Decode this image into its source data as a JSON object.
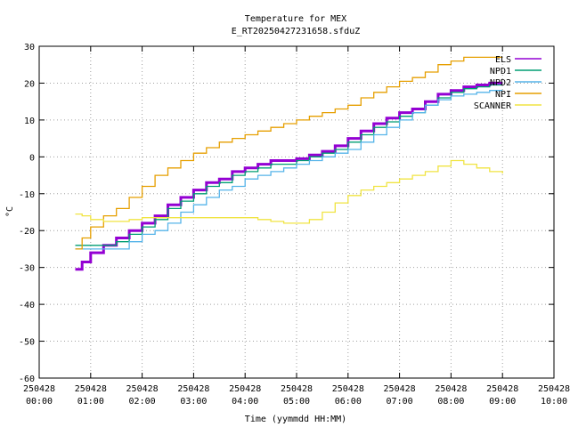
{
  "chart_data": {
    "type": "line",
    "title": "Temperature for MEX",
    "subtitle": "E_RT20250427231658.sfduZ",
    "xlabel": "Time (yymmdd HH:MM)",
    "ylabel": "°C",
    "xlim": [
      "250428 00:00",
      "250428 10:00"
    ],
    "ylim": [
      -60,
      30
    ],
    "grid": true,
    "legend_position": "top-right",
    "x_tick_labels": [
      {
        "date": "250428",
        "time": "00:00"
      },
      {
        "date": "250428",
        "time": "01:00"
      },
      {
        "date": "250428",
        "time": "02:00"
      },
      {
        "date": "250428",
        "time": "03:00"
      },
      {
        "date": "250428",
        "time": "04:00"
      },
      {
        "date": "250428",
        "time": "05:00"
      },
      {
        "date": "250428",
        "time": "06:00"
      },
      {
        "date": "250428",
        "time": "07:00"
      },
      {
        "date": "250428",
        "time": "08:00"
      },
      {
        "date": "250428",
        "time": "09:00"
      },
      {
        "date": "250428",
        "time": "10:00"
      }
    ],
    "y_ticks": [
      -60,
      -50,
      -40,
      -30,
      -20,
      -10,
      0,
      10,
      20,
      30
    ],
    "series": [
      {
        "name": "ELS",
        "color": "#9400d3",
        "x": [
          "250428 00:42",
          "250428 00:50",
          "250428 01:00",
          "250428 01:15",
          "250428 01:30",
          "250428 01:45",
          "250428 02:00",
          "250428 02:15",
          "250428 02:30",
          "250428 02:45",
          "250428 03:00",
          "250428 03:15",
          "250428 03:30",
          "250428 03:45",
          "250428 04:00",
          "250428 04:15",
          "250428 04:30",
          "250428 04:45",
          "250428 05:00",
          "250428 05:15",
          "250428 05:30",
          "250428 05:45",
          "250428 06:00",
          "250428 06:15",
          "250428 06:30",
          "250428 06:45",
          "250428 07:00",
          "250428 07:15",
          "250428 07:30",
          "250428 07:45",
          "250428 08:00",
          "250428 08:15",
          "250428 08:30",
          "250428 08:45",
          "250428 09:00"
        ],
        "y": [
          -30.5,
          -28.5,
          -26,
          -24,
          -22,
          -20,
          -18,
          -16,
          -13,
          -11,
          -9,
          -7,
          -6,
          -4,
          -3,
          -2,
          -1,
          -1,
          -0.5,
          0.5,
          1.5,
          3,
          5,
          7,
          9,
          10.5,
          12,
          13,
          15,
          17,
          18,
          19,
          19.5,
          20,
          20
        ]
      },
      {
        "name": "NPD1",
        "color": "#009e73",
        "x": [
          "250428 00:42",
          "250428 00:50",
          "250428 01:00",
          "250428 01:15",
          "250428 01:30",
          "250428 01:45",
          "250428 02:00",
          "250428 02:15",
          "250428 02:30",
          "250428 02:45",
          "250428 03:00",
          "250428 03:15",
          "250428 03:30",
          "250428 03:45",
          "250428 04:00",
          "250428 04:15",
          "250428 04:30",
          "250428 04:45",
          "250428 05:00",
          "250428 05:15",
          "250428 05:30",
          "250428 05:45",
          "250428 06:00",
          "250428 06:15",
          "250428 06:30",
          "250428 06:45",
          "250428 07:00",
          "250428 07:15",
          "250428 07:30",
          "250428 07:45",
          "250428 08:00",
          "250428 08:15",
          "250428 08:30",
          "250428 08:45",
          "250428 09:00"
        ],
        "y": [
          -24,
          -24,
          -24,
          -24,
          -23,
          -21,
          -19,
          -17,
          -14,
          -12,
          -10,
          -8,
          -7,
          -5,
          -4,
          -3,
          -2,
          -2,
          -1,
          0,
          1,
          2,
          4,
          6,
          8,
          9.5,
          11,
          12,
          14,
          16,
          17.5,
          18.5,
          19,
          19.5,
          19.5
        ]
      },
      {
        "name": "NPD2",
        "color": "#56b4e9",
        "x": [
          "250428 00:42",
          "250428 00:50",
          "250428 01:00",
          "250428 01:15",
          "250428 01:30",
          "250428 01:45",
          "250428 02:00",
          "250428 02:15",
          "250428 02:30",
          "250428 02:45",
          "250428 03:00",
          "250428 03:15",
          "250428 03:30",
          "250428 03:45",
          "250428 04:00",
          "250428 04:15",
          "250428 04:30",
          "250428 04:45",
          "250428 05:00",
          "250428 05:15",
          "250428 05:30",
          "250428 05:45",
          "250428 06:00",
          "250428 06:15",
          "250428 06:30",
          "250428 06:45",
          "250428 07:00",
          "250428 07:15",
          "250428 07:30",
          "250428 07:45",
          "250428 08:00",
          "250428 08:15",
          "250428 08:30",
          "250428 08:45",
          "250428 09:00"
        ],
        "y": [
          -25,
          -25,
          -25,
          -25,
          -25,
          -23,
          -21,
          -20,
          -18,
          -15,
          -13,
          -11,
          -9,
          -8,
          -6,
          -5,
          -4,
          -3,
          -2,
          -1,
          0,
          1,
          2,
          4,
          6,
          8,
          10,
          12,
          14,
          15.5,
          16.5,
          17,
          17.5,
          18,
          18
        ]
      },
      {
        "name": "NPI",
        "color": "#e69f00",
        "x": [
          "250428 00:42",
          "250428 00:50",
          "250428 01:00",
          "250428 01:15",
          "250428 01:30",
          "250428 01:45",
          "250428 02:00",
          "250428 02:15",
          "250428 02:30",
          "250428 02:45",
          "250428 03:00",
          "250428 03:15",
          "250428 03:30",
          "250428 03:45",
          "250428 04:00",
          "250428 04:15",
          "250428 04:30",
          "250428 04:45",
          "250428 05:00",
          "250428 05:15",
          "250428 05:30",
          "250428 05:45",
          "250428 06:00",
          "250428 06:15",
          "250428 06:30",
          "250428 06:45",
          "250428 07:00",
          "250428 07:15",
          "250428 07:30",
          "250428 07:45",
          "250428 08:00",
          "250428 08:15",
          "250428 08:30",
          "250428 08:45",
          "250428 09:00"
        ],
        "y": [
          -25,
          -22,
          -19,
          -16,
          -14,
          -11,
          -8,
          -5,
          -3,
          -1,
          1,
          2.5,
          4,
          5,
          6,
          7,
          8,
          9,
          10,
          11,
          12,
          13,
          14,
          16,
          17.5,
          19,
          20.5,
          21.5,
          23,
          25,
          26,
          27,
          27,
          27,
          27
        ]
      },
      {
        "name": "SCANNER",
        "color": "#f0e442",
        "x": [
          "250428 00:42",
          "250428 00:50",
          "250428 01:00",
          "250428 01:15",
          "250428 01:30",
          "250428 01:45",
          "250428 02:00",
          "250428 02:15",
          "250428 02:30",
          "250428 02:45",
          "250428 03:00",
          "250428 03:15",
          "250428 03:30",
          "250428 03:45",
          "250428 04:00",
          "250428 04:15",
          "250428 04:30",
          "250428 04:45",
          "250428 05:00",
          "250428 05:15",
          "250428 05:30",
          "250428 05:45",
          "250428 06:00",
          "250428 06:15",
          "250428 06:30",
          "250428 06:45",
          "250428 07:00",
          "250428 07:15",
          "250428 07:30",
          "250428 07:45",
          "250428 08:00",
          "250428 08:15",
          "250428 08:30",
          "250428 08:45",
          "250428 09:00"
        ],
        "y": [
          -15.5,
          -16,
          -17,
          -17.5,
          -17.5,
          -17,
          -16.5,
          -16.5,
          -16.5,
          -16.5,
          -16.5,
          -16.5,
          -16.5,
          -16.5,
          -16.5,
          -17,
          -17.5,
          -18,
          -18,
          -17,
          -15,
          -12.5,
          -10.5,
          -9,
          -8,
          -7,
          -6,
          -5,
          -4,
          -2.5,
          -1,
          -2,
          -3,
          -4,
          -4.5
        ]
      }
    ]
  }
}
